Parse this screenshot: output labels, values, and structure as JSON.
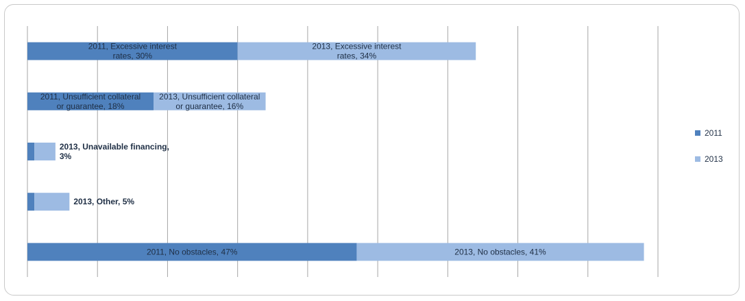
{
  "chart_data": {
    "type": "bar",
    "orientation": "horizontal",
    "stacked": true,
    "categories": [
      "Excessive interest rates",
      "Unsufficient collateral or guarantee",
      "Unavailable financing",
      "Other",
      "No obstacles"
    ],
    "series": [
      {
        "name": "2011",
        "color": "#4f81bd",
        "values": [
          30,
          18,
          1,
          1,
          47
        ],
        "data_labels": [
          "2011, Excessive interest rates, 30%",
          "2011, Unsufficient collateral or guarantee, 18%",
          "",
          "",
          "2011, No obstacles, 47%"
        ]
      },
      {
        "name": "2013",
        "color": "#9dbbe3",
        "values": [
          34,
          16,
          3,
          5,
          41
        ],
        "data_labels": [
          "2013, Excessive interest rates, 34%",
          "2013, Unsufficient collateral or guarantee, 16%",
          "2013, Unavailable financing, 3%",
          "2013, Other, 5%",
          "2013, No obstacles, 41%"
        ]
      }
    ],
    "xlim": [
      0,
      100
    ],
    "grid": "vertical",
    "gridline_count": 10,
    "legend": "right"
  }
}
